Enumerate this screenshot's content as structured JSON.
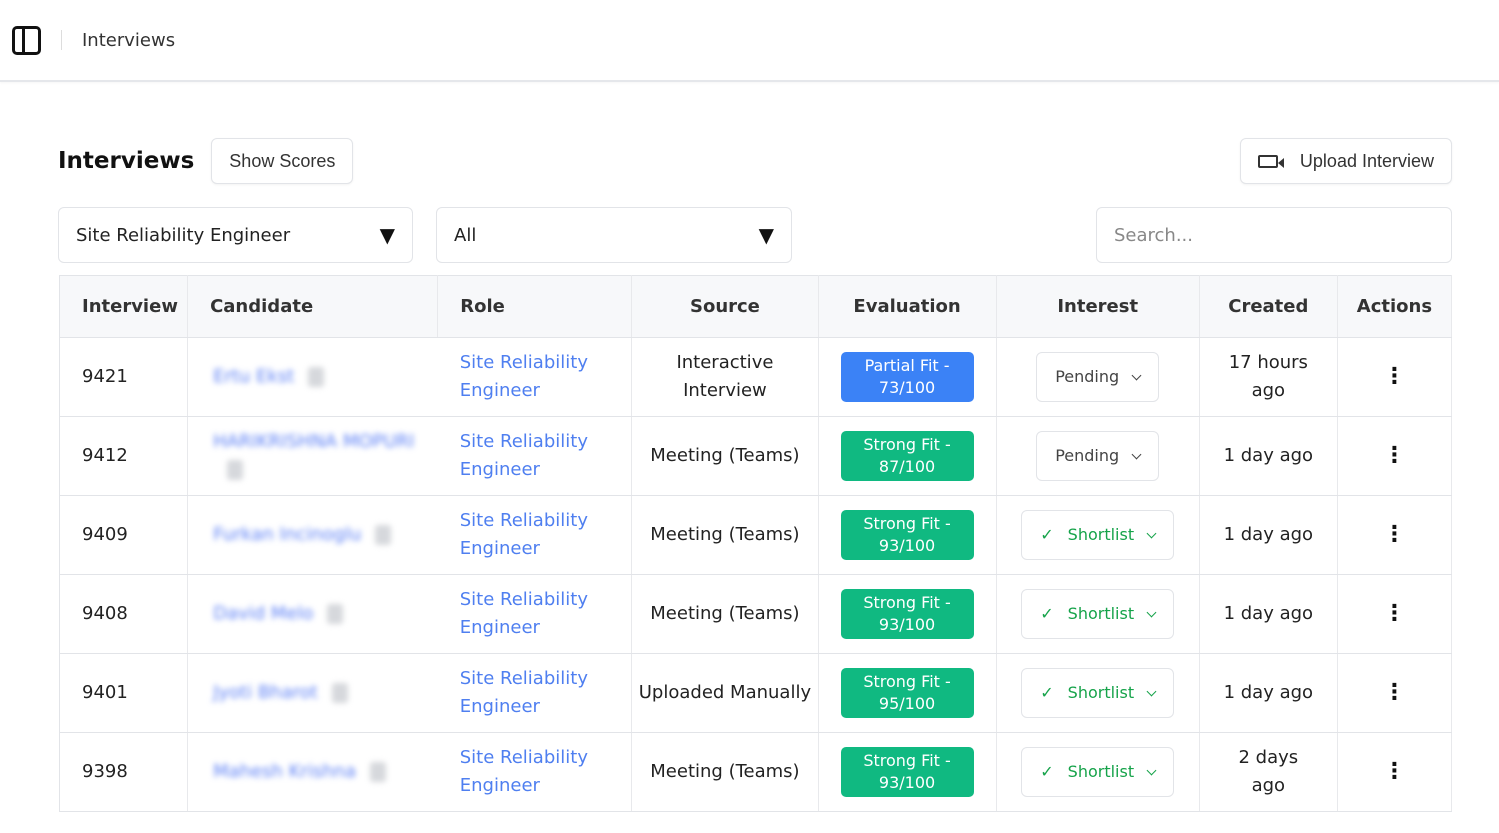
{
  "topbar": {
    "breadcrumb": "Interviews"
  },
  "header": {
    "title": "Interviews",
    "show_scores": "Show Scores",
    "upload": "Upload Interview"
  },
  "filters": {
    "role": "Site Reliability Engineer",
    "status": "All",
    "search_placeholder": "Search..."
  },
  "table": {
    "columns": [
      "Interview",
      "Candidate",
      "Role",
      "Source",
      "Evaluation",
      "Interest",
      "Created",
      "Actions"
    ],
    "rows": [
      {
        "id": "9421",
        "candidate": "Ertu Ekst",
        "role": "Site Reliability Engineer",
        "source": "Interactive Interview",
        "evaluation": "Partial Fit - 73/100",
        "fit": "partial",
        "interest": "Pending",
        "created": "17 hours ago"
      },
      {
        "id": "9412",
        "candidate": "HARIKRISHNA MOPURI",
        "role": "Site Reliability Engineer",
        "source": "Meeting (Teams)",
        "evaluation": "Strong Fit - 87/100",
        "fit": "strong",
        "interest": "Pending",
        "created": "1 day ago"
      },
      {
        "id": "9409",
        "candidate": "Furkan Incinoglu",
        "role": "Site Reliability Engineer",
        "source": "Meeting (Teams)",
        "evaluation": "Strong Fit - 93/100",
        "fit": "strong",
        "interest": "Shortlist",
        "created": "1 day ago"
      },
      {
        "id": "9408",
        "candidate": "David Melo",
        "role": "Site Reliability Engineer",
        "source": "Meeting (Teams)",
        "evaluation": "Strong Fit - 93/100",
        "fit": "strong",
        "interest": "Shortlist",
        "created": "1 day ago"
      },
      {
        "id": "9401",
        "candidate": "Jyoti Bharot",
        "role": "Site Reliability Engineer",
        "source": "Uploaded Manually",
        "evaluation": "Strong Fit - 95/100",
        "fit": "strong",
        "interest": "Shortlist",
        "created": "1 day ago"
      },
      {
        "id": "9398",
        "candidate": "Mahesh Krishna",
        "role": "Site Reliability Engineer",
        "source": "Meeting (Teams)",
        "evaluation": "Strong Fit - 93/100",
        "fit": "strong",
        "interest": "Shortlist",
        "created": "2 days ago"
      }
    ]
  },
  "colors": {
    "partial": "#3b82f6",
    "strong": "#10b981",
    "link": "#4f7ff0",
    "shortlist": "#16a34a"
  }
}
